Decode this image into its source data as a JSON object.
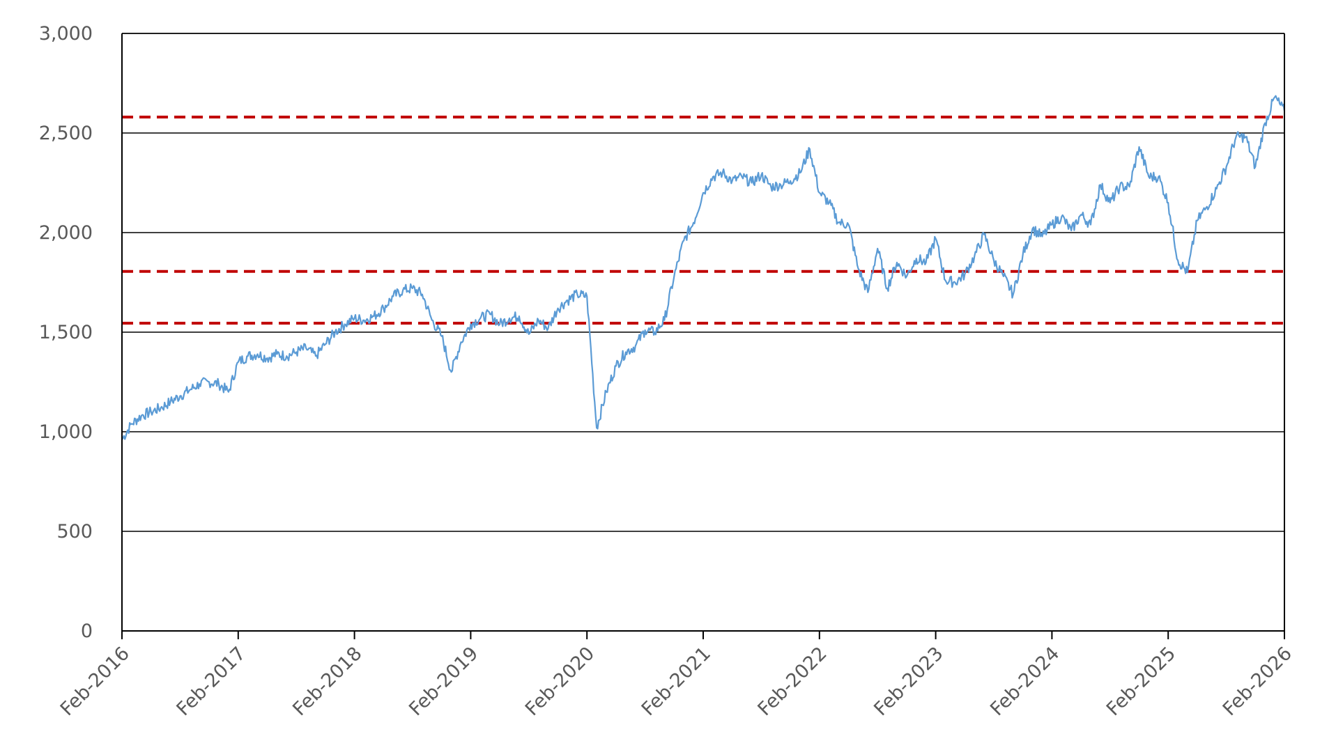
{
  "chart_data": {
    "type": "line",
    "title": "",
    "xlabel": "",
    "ylabel": "",
    "ylim": [
      0,
      3000
    ],
    "y_ticks": [
      0,
      500,
      1000,
      1500,
      2000,
      2500,
      3000
    ],
    "y_tick_labels": [
      "0",
      "500",
      "1,000",
      "1,500",
      "2,000",
      "2,500",
      "3,000"
    ],
    "x_ticks": [
      "2016-02",
      "2017-02",
      "2018-02",
      "2019-02",
      "2020-02",
      "2021-02",
      "2022-02",
      "2023-02",
      "2024-02",
      "2025-02",
      "2026-02"
    ],
    "x_tick_labels": [
      "Feb-2016",
      "Feb-2017",
      "Feb-2018",
      "Feb-2019",
      "Feb-2020",
      "Feb-2021",
      "Feb-2022",
      "Feb-2023",
      "Feb-2024",
      "Feb-2025",
      "Feb-2026"
    ],
    "grid": true,
    "legend": "none",
    "reference_lines": [
      {
        "y": 2580,
        "style": "dashed",
        "color": "#c00000"
      },
      {
        "y": 1805,
        "style": "dashed",
        "color": "#c00000"
      },
      {
        "y": 1545,
        "style": "dashed",
        "color": "#c00000"
      }
    ],
    "series": [
      {
        "color": "#5b9bd5",
        "points": [
          [
            "2016-02",
            960
          ],
          [
            "2016-03",
            1040
          ],
          [
            "2016-04",
            1080
          ],
          [
            "2016-05",
            1100
          ],
          [
            "2016-06",
            1120
          ],
          [
            "2016-07",
            1150
          ],
          [
            "2016-08",
            1180
          ],
          [
            "2016-09",
            1210
          ],
          [
            "2016-10",
            1240
          ],
          [
            "2016-11",
            1250
          ],
          [
            "2016-12",
            1240
          ],
          [
            "2017-01",
            1200
          ],
          [
            "2017-02",
            1350
          ],
          [
            "2017-03",
            1380
          ],
          [
            "2017-04",
            1390
          ],
          [
            "2017-05",
            1370
          ],
          [
            "2017-06",
            1390
          ],
          [
            "2017-07",
            1380
          ],
          [
            "2017-08",
            1400
          ],
          [
            "2017-09",
            1420
          ],
          [
            "2017-10",
            1380
          ],
          [
            "2017-11",
            1440
          ],
          [
            "2017-12",
            1500
          ],
          [
            "2018-01",
            1540
          ],
          [
            "2018-02",
            1570
          ],
          [
            "2018-03",
            1560
          ],
          [
            "2018-04",
            1580
          ],
          [
            "2018-05",
            1620
          ],
          [
            "2018-06",
            1680
          ],
          [
            "2018-07",
            1710
          ],
          [
            "2018-08",
            1720
          ],
          [
            "2018-09",
            1690
          ],
          [
            "2018-10",
            1560
          ],
          [
            "2018-11",
            1480
          ],
          [
            "2018-12",
            1300
          ],
          [
            "2019-01",
            1450
          ],
          [
            "2019-02",
            1540
          ],
          [
            "2019-03",
            1570
          ],
          [
            "2019-04",
            1590
          ],
          [
            "2019-05",
            1540
          ],
          [
            "2019-06",
            1570
          ],
          [
            "2019-07",
            1580
          ],
          [
            "2019-08",
            1490
          ],
          [
            "2019-09",
            1560
          ],
          [
            "2019-10",
            1520
          ],
          [
            "2019-11",
            1620
          ],
          [
            "2019-12",
            1660
          ],
          [
            "2020-01",
            1690
          ],
          [
            "2020-02",
            1680
          ],
          [
            "2020-03",
            1020
          ],
          [
            "2020-04",
            1200
          ],
          [
            "2020-05",
            1330
          ],
          [
            "2020-06",
            1400
          ],
          [
            "2020-07",
            1430
          ],
          [
            "2020-08",
            1510
          ],
          [
            "2020-09",
            1500
          ],
          [
            "2020-10",
            1560
          ],
          [
            "2020-11",
            1780
          ],
          [
            "2020-12",
            1960
          ],
          [
            "2021-01",
            2050
          ],
          [
            "2021-02",
            2200
          ],
          [
            "2021-03",
            2280
          ],
          [
            "2021-04",
            2300
          ],
          [
            "2021-05",
            2260
          ],
          [
            "2021-06",
            2280
          ],
          [
            "2021-07",
            2250
          ],
          [
            "2021-08",
            2290
          ],
          [
            "2021-09",
            2230
          ],
          [
            "2021-10",
            2240
          ],
          [
            "2021-11",
            2260
          ],
          [
            "2021-12",
            2300
          ],
          [
            "2022-01",
            2420
          ],
          [
            "2022-02",
            2200
          ],
          [
            "2022-03",
            2150
          ],
          [
            "2022-04",
            2050
          ],
          [
            "2022-05",
            2040
          ],
          [
            "2022-06",
            1820
          ],
          [
            "2022-07",
            1700
          ],
          [
            "2022-08",
            1920
          ],
          [
            "2022-09",
            1720
          ],
          [
            "2022-10",
            1850
          ],
          [
            "2022-11",
            1780
          ],
          [
            "2022-12",
            1870
          ],
          [
            "2023-01",
            1850
          ],
          [
            "2023-02",
            1970
          ],
          [
            "2023-03",
            1760
          ],
          [
            "2023-04",
            1750
          ],
          [
            "2023-05",
            1790
          ],
          [
            "2023-06",
            1880
          ],
          [
            "2023-07",
            1990
          ],
          [
            "2023-08",
            1860
          ],
          [
            "2023-09",
            1780
          ],
          [
            "2023-10",
            1690
          ],
          [
            "2023-11",
            1890
          ],
          [
            "2023-12",
            2020
          ],
          [
            "2024-01",
            1980
          ],
          [
            "2024-02",
            2040
          ],
          [
            "2024-03",
            2080
          ],
          [
            "2024-04",
            2010
          ],
          [
            "2024-05",
            2090
          ],
          [
            "2024-06",
            2040
          ],
          [
            "2024-07",
            2240
          ],
          [
            "2024-08",
            2150
          ],
          [
            "2024-09",
            2230
          ],
          [
            "2024-10",
            2230
          ],
          [
            "2024-11",
            2430
          ],
          [
            "2024-12",
            2280
          ],
          [
            "2025-01",
            2280
          ],
          [
            "2025-02",
            2150
          ],
          [
            "2025-03",
            1860
          ],
          [
            "2025-04",
            1800
          ],
          [
            "2025-05",
            2060
          ],
          [
            "2025-06",
            2130
          ],
          [
            "2025-07",
            2220
          ],
          [
            "2025-08",
            2330
          ],
          [
            "2025-09",
            2480
          ],
          [
            "2025-10",
            2480
          ],
          [
            "2025-11",
            2330
          ],
          [
            "2025-12",
            2550
          ],
          [
            "2026-01",
            2680
          ],
          [
            "2026-02",
            2610
          ]
        ]
      }
    ]
  }
}
